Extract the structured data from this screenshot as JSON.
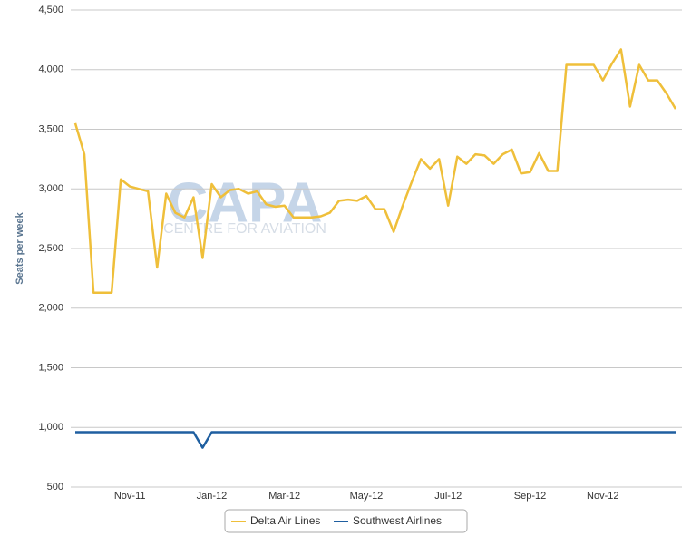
{
  "chart_data": {
    "type": "line",
    "y_label": "Seats per week",
    "watermark": "CAPA",
    "watermark_subtitle": "CENTRE FOR AVIATION",
    "categories": [
      null,
      null,
      null,
      null,
      null,
      null,
      "Nov-11",
      null,
      null,
      null,
      null,
      null,
      null,
      null,
      null,
      "Jan-12",
      null,
      null,
      null,
      null,
      null,
      null,
      null,
      "Mar-12",
      null,
      null,
      null,
      null,
      null,
      null,
      null,
      null,
      "May-12",
      null,
      null,
      null,
      null,
      null,
      null,
      null,
      null,
      "Jul-12",
      null,
      null,
      null,
      null,
      null,
      null,
      null,
      null,
      "Sep-12",
      null,
      null,
      null,
      null,
      null,
      null,
      null,
      "Nov-12",
      null,
      null,
      null,
      null,
      null,
      null,
      null,
      null
    ],
    "series": [
      {
        "name": "Delta Air Lines",
        "color": "#efbf3a",
        "values": [
          3550,
          3290,
          2130,
          2130,
          2130,
          3080,
          3020,
          3000,
          2980,
          2340,
          2960,
          2800,
          2760,
          2930,
          2420,
          3040,
          2930,
          2990,
          3000,
          2960,
          2980,
          2870,
          2850,
          2860,
          2760,
          2760,
          2760,
          2770,
          2800,
          2900,
          2910,
          2900,
          2940,
          2830,
          2830,
          2640,
          2860,
          3060,
          3250,
          3170,
          3250,
          2860,
          3270,
          3210,
          3290,
          3280,
          3210,
          3290,
          3330,
          3130,
          3140,
          3300,
          3150,
          3150,
          4040,
          4040,
          4040,
          4040,
          3910,
          4050,
          4170,
          3690,
          4040,
          3910,
          3910,
          3800,
          3670
        ]
      },
      {
        "name": "Southwest Airlines",
        "color": "#1f5fa0",
        "values": [
          960,
          960,
          960,
          960,
          960,
          960,
          960,
          960,
          960,
          960,
          960,
          960,
          960,
          960,
          830,
          960,
          960,
          960,
          960,
          960,
          960,
          960,
          960,
          960,
          960,
          960,
          960,
          960,
          960,
          960,
          960,
          960,
          960,
          960,
          960,
          960,
          960,
          960,
          960,
          960,
          960,
          960,
          960,
          960,
          960,
          960,
          960,
          960,
          960,
          960,
          960,
          960,
          960,
          960,
          960,
          960,
          960,
          960,
          960,
          960,
          960,
          960,
          960,
          960,
          960,
          960,
          960
        ]
      }
    ],
    "ylim": [
      500,
      4500
    ],
    "yticks": [
      500,
      {
        "value": 1000,
        "label": "1,000"
      },
      {
        "value": 1500,
        "label": "1,500"
      },
      {
        "value": 2000,
        "label": "2,000"
      },
      {
        "value": 2500,
        "label": "2,500"
      },
      {
        "value": 3000,
        "label": "3,000"
      },
      {
        "value": 3500,
        "label": "3,500"
      },
      {
        "value": 4000,
        "label": "4,000"
      },
      {
        "value": 4500,
        "label": "4,500"
      }
    ],
    "grid": true
  }
}
